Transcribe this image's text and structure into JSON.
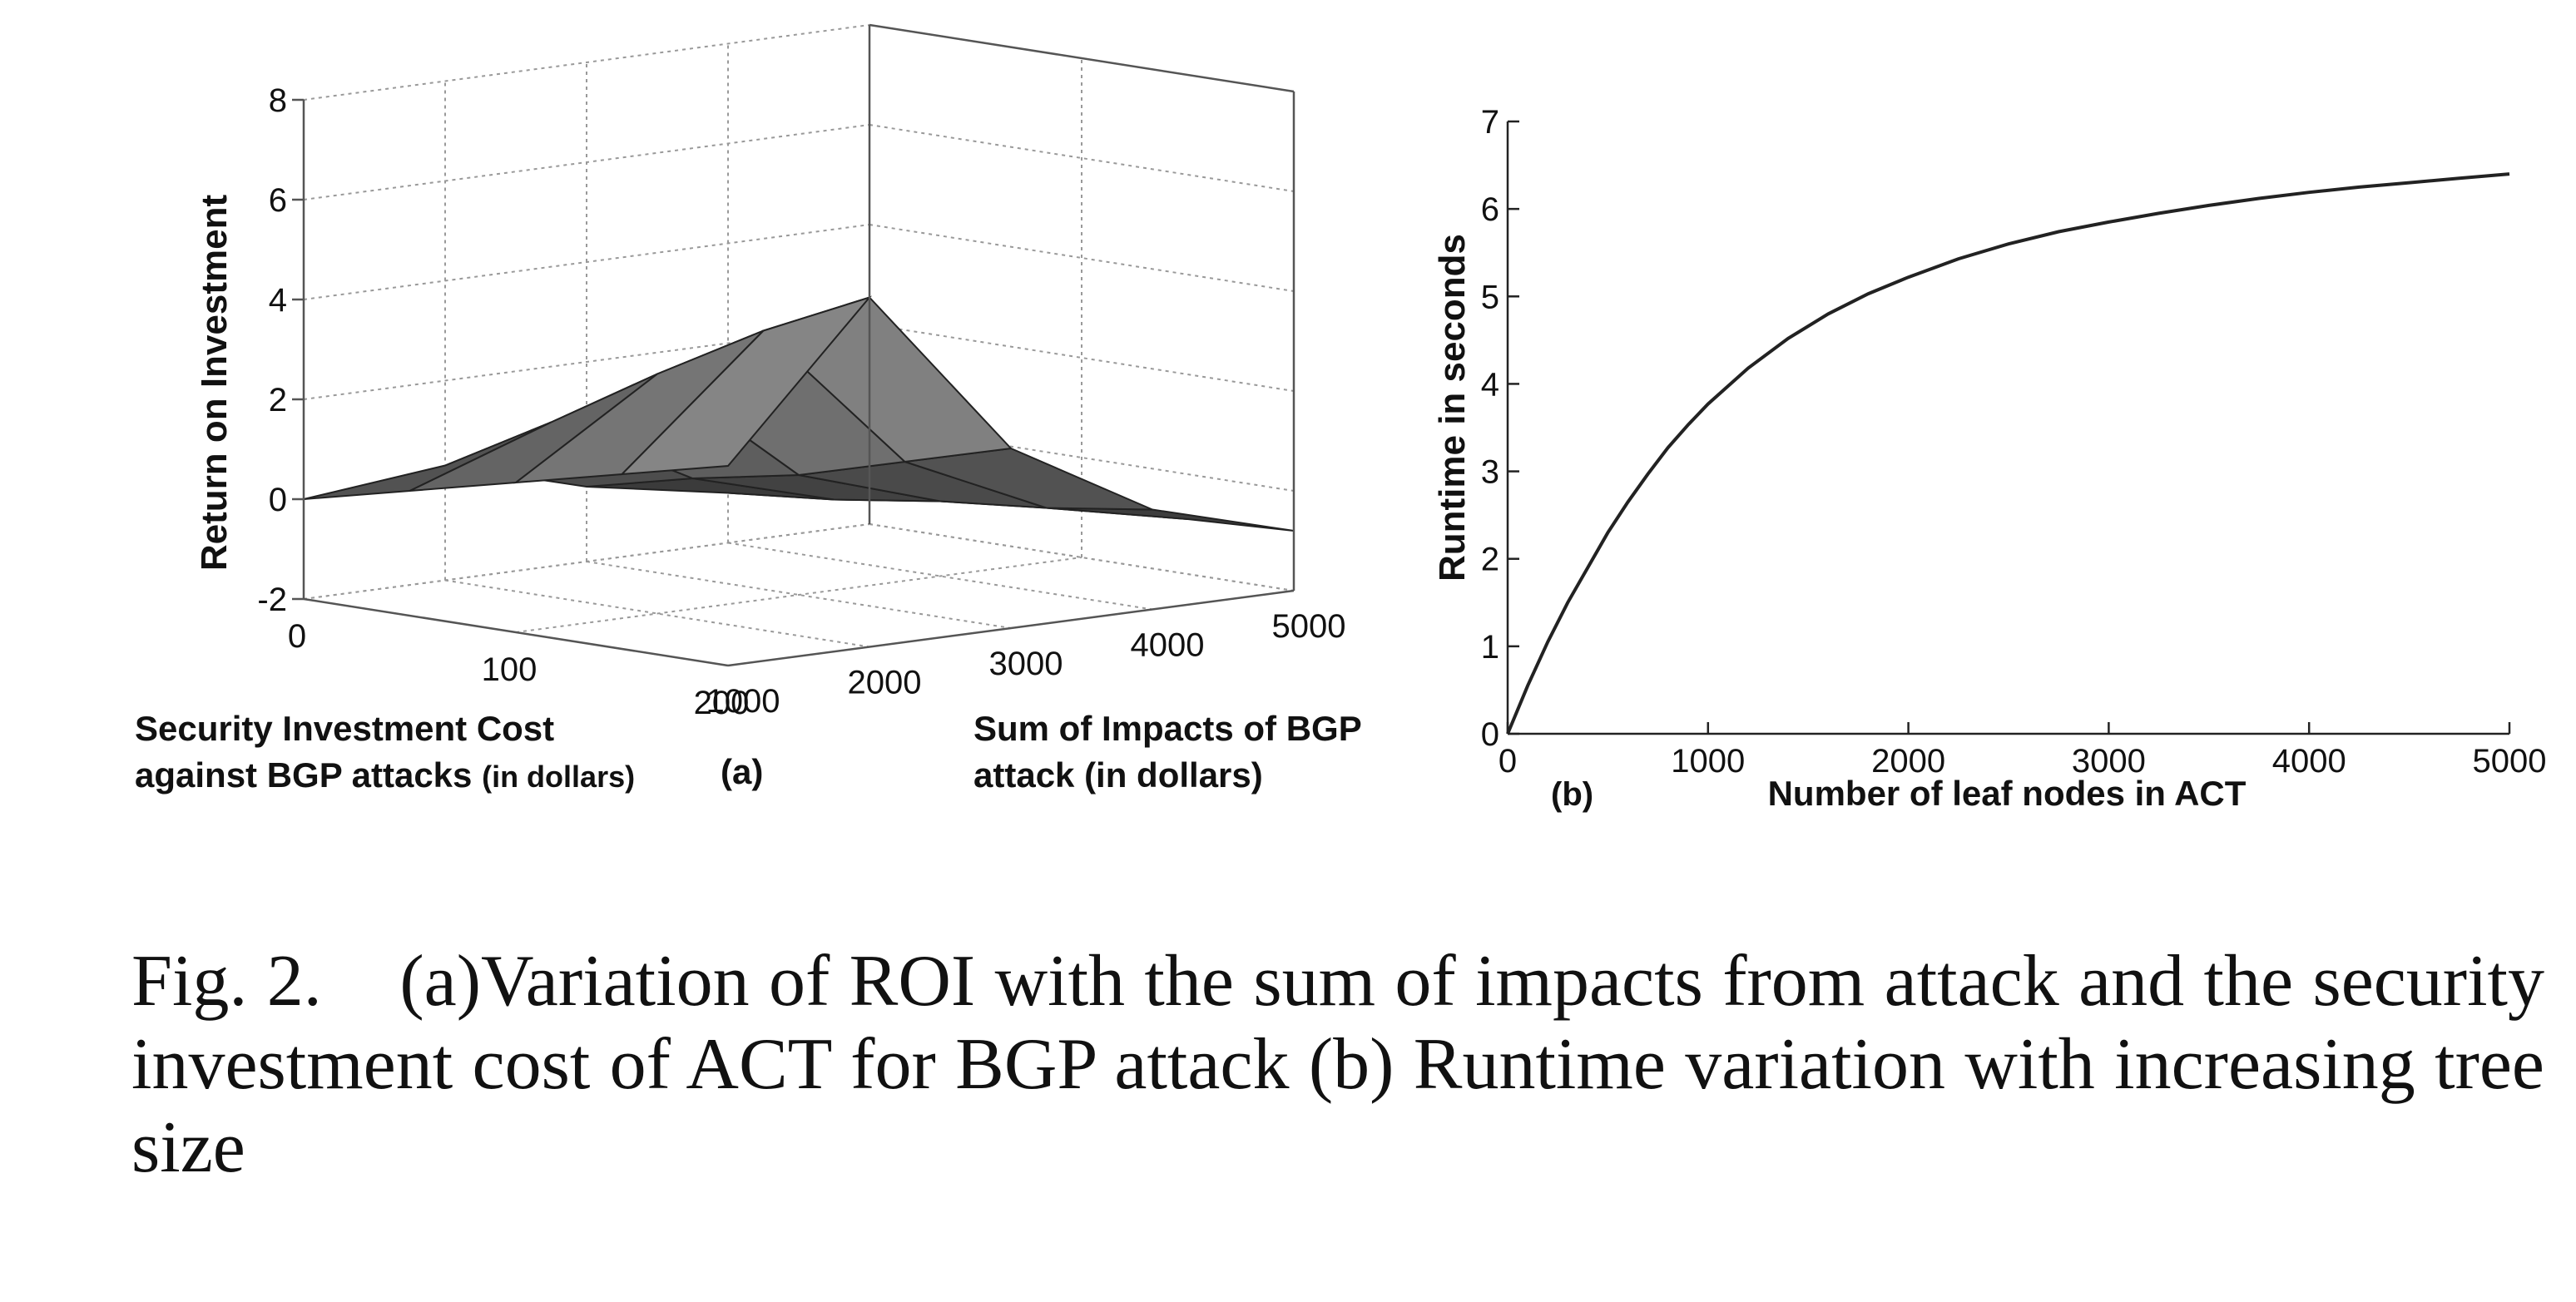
{
  "figure": {
    "caption_label": "Fig. 2.",
    "caption_text": "(a)Variation of ROI with the sum of impacts from attack and the security investment cost of ACT for BGP attack (b) Runtime variation with increasing tree size"
  },
  "chart_data": [
    {
      "type": "surface",
      "panel_label": "(a)",
      "zlabel": "Return on Investment",
      "xlabel_lines": [
        "Security Investment Cost",
        "against BGP attacks"
      ],
      "xlabel_unit": "(in dollars)",
      "ylabel_lines": [
        "Sum of Impacts of BGP",
        "attack (in dollars)"
      ],
      "x_ticks": [
        "0",
        "100",
        "200"
      ],
      "y_ticks": [
        "1000",
        "2000",
        "3000",
        "4000",
        "5000"
      ],
      "z_ticks": [
        "-2",
        "0",
        "2",
        "4",
        "6",
        "8"
      ],
      "xlim": [
        0,
        200
      ],
      "ylim": [
        1000,
        5000
      ],
      "zlim": [
        -2,
        8
      ],
      "x": [
        0,
        50,
        100,
        150,
        200
      ],
      "y": [
        1000,
        2000,
        3000,
        4000,
        5000
      ],
      "z": [
        [
          0.0,
          0.5,
          1.0,
          1.5,
          2.0
        ],
        [
          0.3,
          1.5,
          2.8,
          4.0,
          5.0
        ],
        [
          -0.5,
          0.0,
          0.4,
          1.0,
          1.6
        ],
        [
          -1.0,
          -0.8,
          -0.5,
          -0.3,
          0.0
        ],
        [
          -1.2,
          -1.1,
          -1.0,
          -0.9,
          -0.8
        ]
      ],
      "grid": true
    },
    {
      "type": "line",
      "panel_label": "(b)",
      "xlabel": "Number of leaf nodes in ACT",
      "ylabel": "Runtime in seconds",
      "x_ticks": [
        "0",
        "1000",
        "2000",
        "3000",
        "4000",
        "5000"
      ],
      "y_ticks": [
        "0",
        "1",
        "2",
        "3",
        "4",
        "5",
        "6",
        "7"
      ],
      "xlim": [
        0,
        5000
      ],
      "ylim": [
        0,
        7
      ],
      "series": [
        {
          "x": [
            0,
            100,
            200,
            300,
            400,
            500,
            600,
            700,
            800,
            900,
            1000,
            1200,
            1400,
            1600,
            1800,
            2000,
            2250,
            2500,
            2750,
            3000,
            3250,
            3500,
            3750,
            4000,
            4250,
            4500,
            4750,
            5000
          ],
          "y": [
            0.0,
            0.55,
            1.05,
            1.5,
            1.9,
            2.3,
            2.65,
            2.97,
            3.27,
            3.53,
            3.77,
            4.18,
            4.52,
            4.8,
            5.03,
            5.22,
            5.43,
            5.6,
            5.74,
            5.85,
            5.95,
            6.04,
            6.12,
            6.19,
            6.25,
            6.3,
            6.35,
            6.4
          ],
          "color": "#222222"
        }
      ],
      "grid": false
    }
  ]
}
